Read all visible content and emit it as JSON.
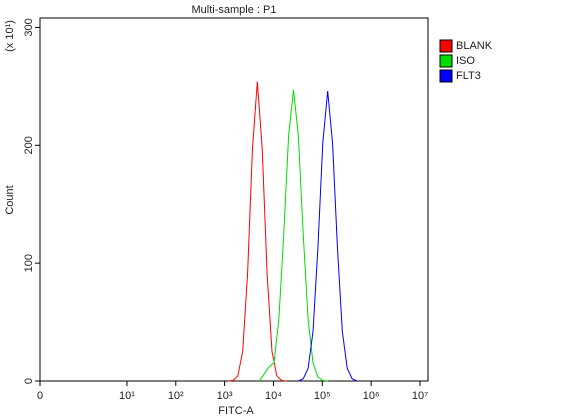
{
  "chart_data": {
    "type": "line",
    "title": "Multi-sample : P1",
    "x_label": "FITC-A",
    "y_label": "Count",
    "y_multiplier": "(x 10¹)",
    "xscale": "biexponential",
    "xlim": [
      0,
      14590000
    ],
    "xticks": [
      0,
      {
        "value": 10,
        "label": "10¹"
      },
      {
        "value": 100,
        "label": "10²"
      },
      {
        "value": 1000,
        "label": "10³"
      },
      {
        "value": 10000,
        "label": "10⁴"
      },
      {
        "value": 100000,
        "label": "10⁵"
      },
      {
        "value": 1000000,
        "label": "10⁶"
      },
      {
        "value": 10000000,
        "label": "10⁷"
      }
    ],
    "ylim": [
      0,
      308
    ],
    "yticks": [
      0,
      100,
      200,
      300
    ],
    "legend": "top-right",
    "series": [
      {
        "name": "BLANK",
        "color": "#ff0000",
        "x": [
          1175,
          1479,
          1862,
          2344,
          2951,
          3715,
          4677,
          5888,
          7413,
          9333,
          11749,
          14791,
          18621
        ],
        "values": [
          0,
          0.4,
          4.3,
          25,
          91,
          197,
          254,
          197,
          91,
          25,
          4.3,
          0.4,
          0
        ]
      },
      {
        "name": "ISO",
        "color": "#00dd00",
        "x": [
          5129,
          6457,
          8128,
          10233,
          12882,
          16218,
          20417,
          25704,
          32359,
          40738,
          51286,
          64565,
          81283,
          102329,
          128825
        ],
        "values": [
          0,
          6,
          12,
          15.5,
          52,
          124,
          208,
          247,
          208,
          124,
          52,
          15.5,
          3.3,
          0.5,
          0
        ]
      },
      {
        "name": "FLT3",
        "color": "#0000ff",
        "x": [
          32359,
          40738,
          51286,
          64565,
          81283,
          102329,
          128825,
          162181,
          204174,
          257040,
          323594,
          407380,
          512861
        ],
        "values": [
          0,
          1.9,
          10.8,
          42,
          113,
          202,
          246,
          202,
          113,
          42,
          10.8,
          1.9,
          0
        ]
      }
    ]
  }
}
